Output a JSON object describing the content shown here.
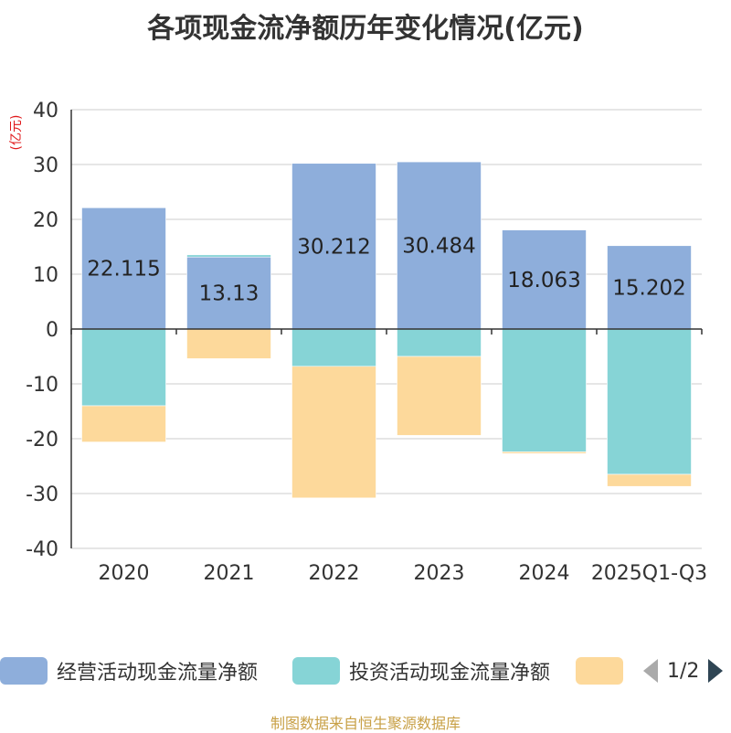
{
  "chart_data": {
    "type": "bar",
    "stacked": true,
    "title": "各项现金流净额历年变化情况(亿元)",
    "ylabel": "(亿元)",
    "ylim": [
      -40,
      40
    ],
    "yticks": [
      40,
      30,
      20,
      10,
      0,
      -10,
      -20,
      -30,
      -40
    ],
    "grid": true,
    "categories": [
      "2020",
      "2021",
      "2022",
      "2023",
      "2024",
      "2025Q1-Q3"
    ],
    "series": [
      {
        "name": "经营活动现金流量净额",
        "color": "#8eaedb",
        "values": [
          22.115,
          13.13,
          30.212,
          30.484,
          18.063,
          15.202
        ],
        "labels": [
          "22.115",
          "13.13",
          "30.212",
          "30.484",
          "18.063",
          "15.202"
        ]
      },
      {
        "name": "投资活动现金流量净额",
        "color": "#86d4d6",
        "values": [
          -14,
          0.4,
          -6.8,
          -5.0,
          -22.4,
          -26.5
        ]
      },
      {
        "name": "",
        "color": "#fdd99b",
        "values": [
          -6.6,
          -5.4,
          -24.0,
          -14.4,
          -0.3,
          -2.2
        ]
      }
    ]
  },
  "legend": {
    "items": [
      {
        "label": "经营活动现金流量净额",
        "color": "#8eaedb"
      },
      {
        "label": "投资活动现金流量净额",
        "color": "#86d4d6"
      },
      {
        "label": "",
        "color": "#fdd99b"
      }
    ],
    "page": "1/2"
  },
  "source": "制图数据来自恒生聚源数据库"
}
